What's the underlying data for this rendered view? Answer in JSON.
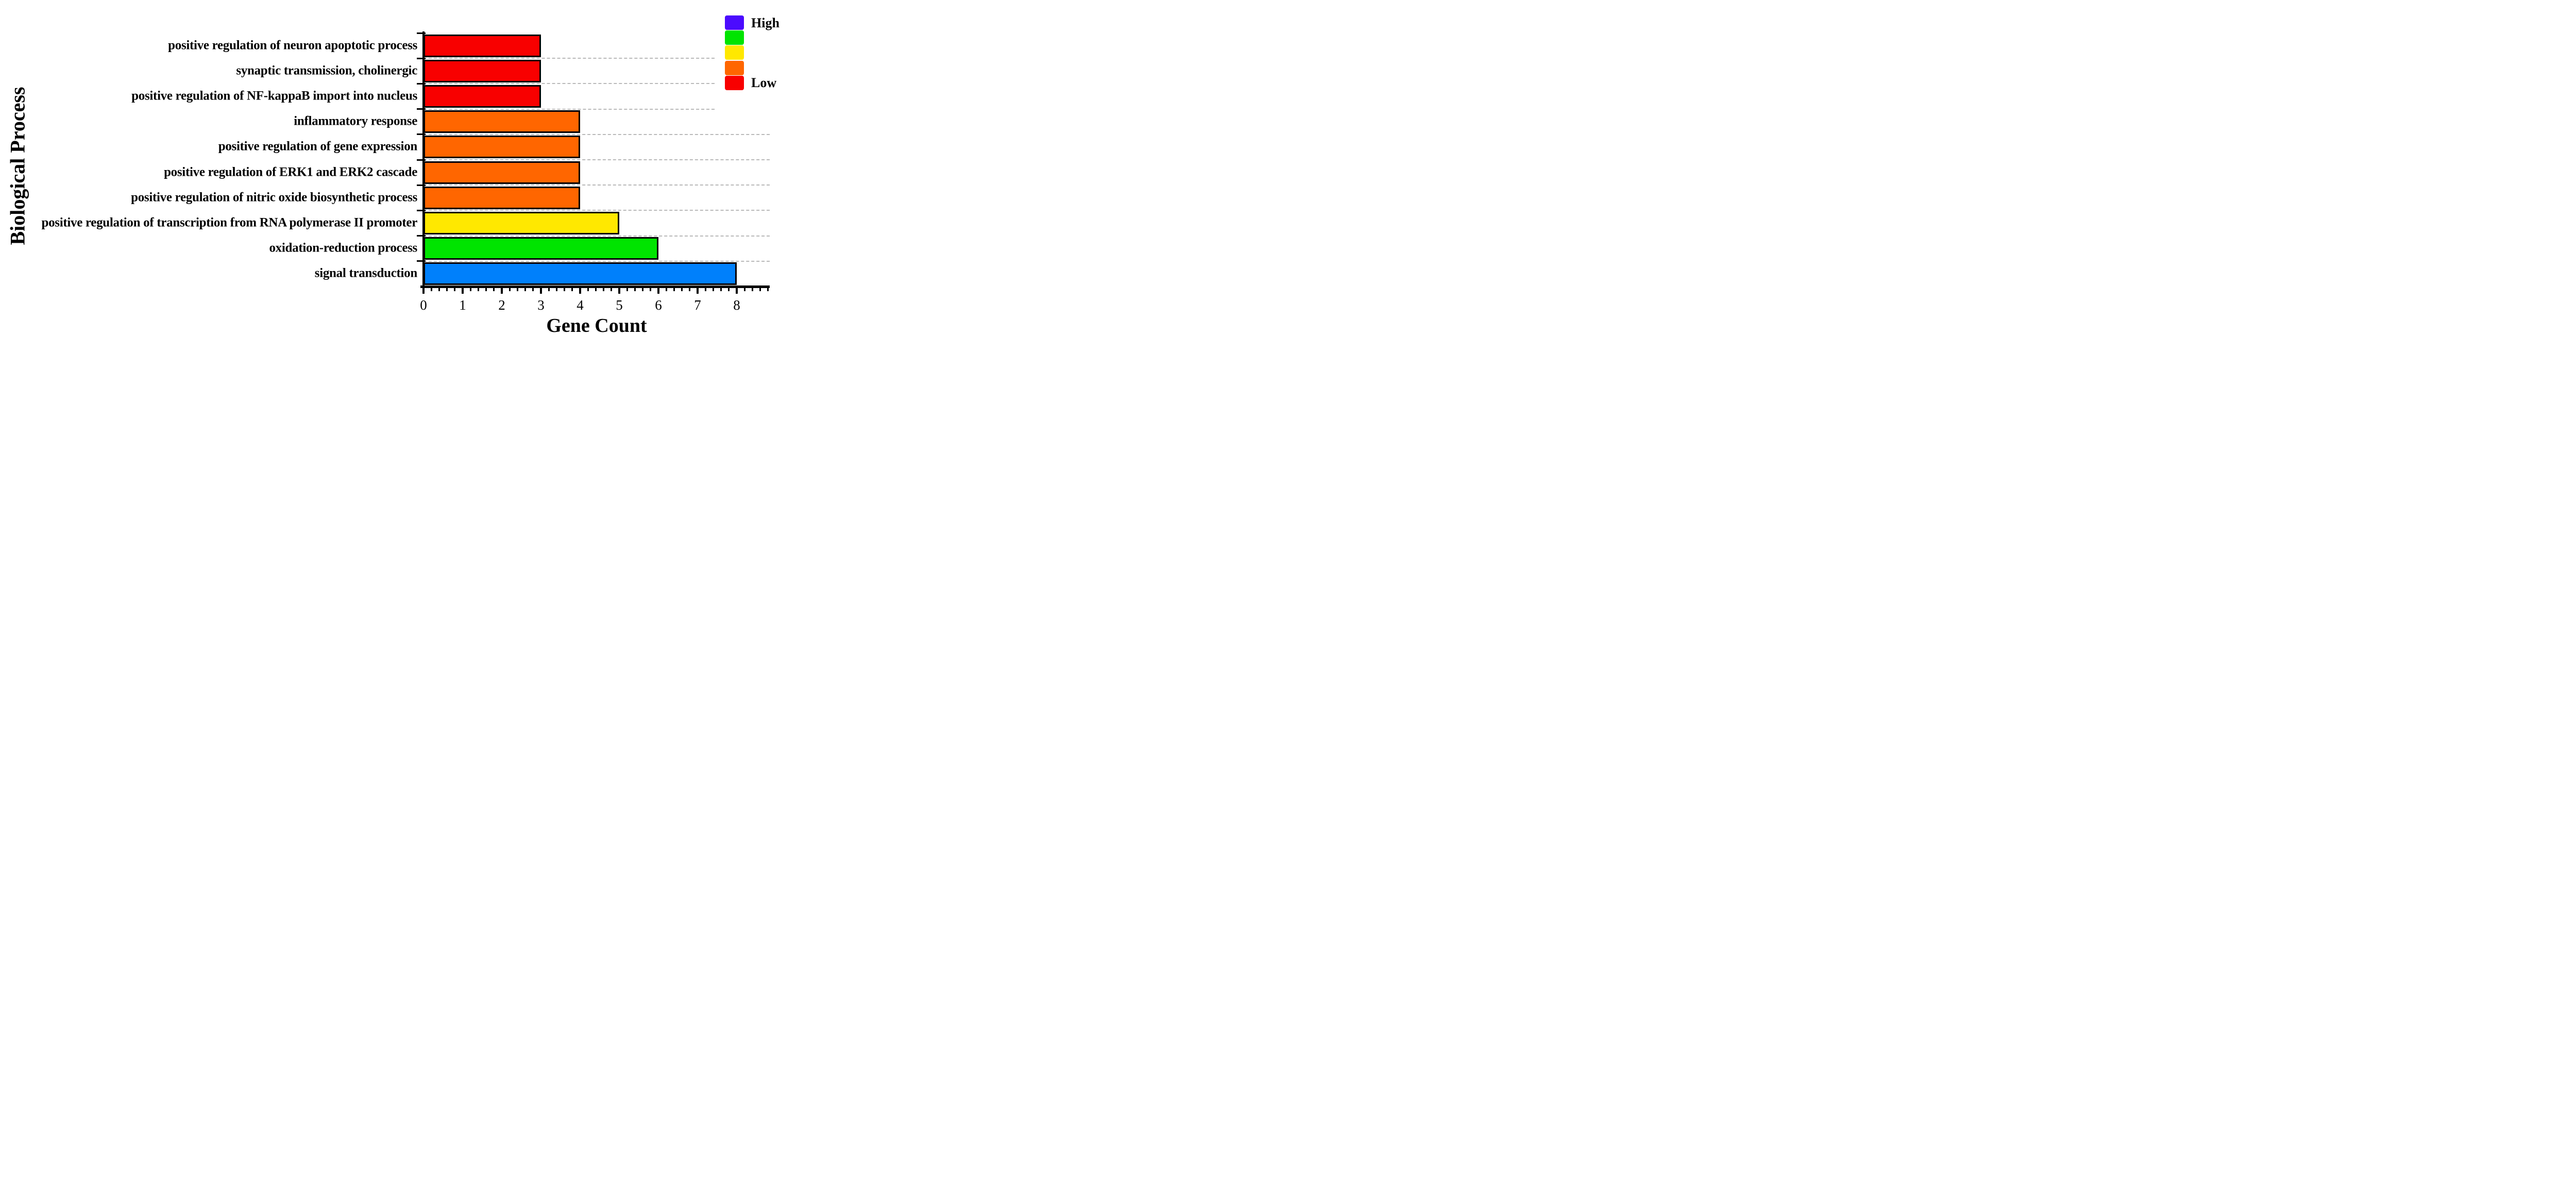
{
  "figure": {
    "background_color": "#ffffff",
    "text_color": "#000000"
  },
  "chart_data": {
    "type": "bar",
    "orientation": "horizontal",
    "title": "",
    "xlabel": "Gene Count",
    "ylabel": "Biological Process",
    "categories": [
      "positive regulation of neuron apoptotic process",
      "synaptic transmission, cholinergic",
      "positive regulation of NF-kappaB import into nucleus",
      "inflammatory response",
      "positive regulation of gene expression",
      "positive regulation of ERK1 and ERK2 cascade",
      "positive regulation of nitric oxide biosynthetic process",
      "positive regulation of transcription from RNA polymerase II promoter",
      "oxidation-reduction process",
      "signal transduction"
    ],
    "values": [
      3,
      3,
      3,
      4,
      4,
      4,
      4,
      5,
      6,
      8
    ],
    "bar_colors": [
      "#f80000",
      "#f80000",
      "#f80000",
      "#ff6600",
      "#ff6600",
      "#ff6600",
      "#ff6600",
      "#ffe800",
      "#00e400",
      "#0080fb"
    ],
    "bar_border_color": "#000000",
    "xlim": [
      0,
      8.8
    ],
    "xticks": [
      0,
      1,
      2,
      3,
      4,
      5,
      6,
      7,
      8
    ],
    "xtick_labels": [
      "0",
      "1",
      "2",
      "3",
      "4",
      "5",
      "6",
      "7",
      "8"
    ],
    "minor_tick_step": 0.2,
    "grid": "horizontal dashed gray lines at category boundaries",
    "gridline_color": "#b9b9b9",
    "legend": {
      "position": "top-right",
      "high_label": "High",
      "low_label": "Low",
      "colors": [
        "#4b0bfe",
        "#00e400",
        "#ffe800",
        "#ff6600",
        "#f80000"
      ]
    }
  }
}
